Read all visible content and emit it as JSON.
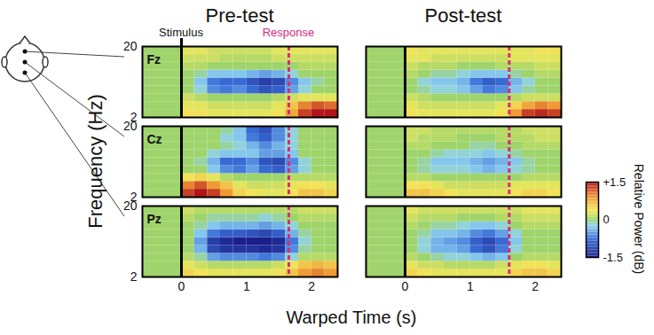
{
  "chart_data": {
    "type": "heatmap",
    "xlabel": "Warped Time (s)",
    "ylabel": "Frequency (Hz)",
    "columns": [
      "Pre-test",
      "Post-test"
    ],
    "rows": [
      "Fz",
      "Cz",
      "Pz"
    ],
    "xlim": [
      -0.6,
      2.4
    ],
    "xticks": [
      0,
      1,
      2
    ],
    "ylim": [
      2,
      20
    ],
    "yticks": [
      2,
      20
    ],
    "time_bins": [
      -0.6,
      0,
      0.2,
      0.4,
      0.6,
      0.8,
      1.0,
      1.2,
      1.4,
      1.6,
      1.8,
      2.0,
      2.2,
      2.4
    ],
    "frequency_bins": [
      2,
      4,
      6,
      8,
      10,
      12,
      14,
      16,
      18,
      20
    ],
    "stimulus": {
      "label": "Stimulus",
      "x": 0
    },
    "response_label": "Response",
    "colorbar": {
      "label": "Relative Power (dB)",
      "range": [
        -1.5,
        1.5
      ],
      "ticks": [
        {
          "value": 1.5,
          "label": "+1.5"
        },
        0,
        -1.5
      ]
    },
    "panels": [
      {
        "column": "Pre-test",
        "row": "Fz",
        "response": 1.65,
        "power": [
          [
            0,
            0.4,
            0.4,
            0.3,
            0.3,
            0.3,
            0.3,
            0.3,
            0.4,
            0.8,
            1.3,
            1.5,
            1.5
          ],
          [
            0,
            0.3,
            0.3,
            0.2,
            0.2,
            0.2,
            0.2,
            0.2,
            0.3,
            0.6,
            1.0,
            1.2,
            1.1
          ],
          [
            0,
            0.2,
            0.1,
            0,
            0,
            0,
            0,
            0,
            0.1,
            0.2,
            0.3,
            0.3,
            0.3
          ],
          [
            0,
            0,
            -0.2,
            -0.6,
            -0.7,
            -0.6,
            -0.8,
            -1.0,
            -0.9,
            -0.5,
            -0.2,
            0,
            0
          ],
          [
            0,
            0,
            -0.3,
            -0.7,
            -0.8,
            -0.8,
            -1.0,
            -1.2,
            -1.1,
            -0.6,
            -0.3,
            -0.1,
            0
          ],
          [
            0,
            0,
            -0.1,
            -0.3,
            -0.3,
            -0.3,
            -0.4,
            -0.5,
            -0.4,
            -0.2,
            0,
            0,
            0
          ],
          [
            0,
            0.1,
            0.1,
            0,
            0,
            0,
            0,
            0,
            0,
            0,
            0.1,
            0.1,
            0.1
          ],
          [
            0,
            0.2,
            0.2,
            0.2,
            0.1,
            0.1,
            0.1,
            0.1,
            0.2,
            0.2,
            0.2,
            0.2,
            0.2
          ],
          [
            0,
            0.3,
            0.3,
            0.2,
            0.2,
            0.2,
            0.2,
            0.2,
            0.3,
            0.3,
            0.3,
            0.3,
            0.3
          ]
        ]
      },
      {
        "column": "Post-test",
        "row": "Fz",
        "response": 1.6,
        "power": [
          [
            0,
            0.4,
            0.3,
            0.3,
            0.3,
            0.3,
            0.3,
            0.3,
            0.4,
            0.9,
            1.3,
            1.4,
            1.3
          ],
          [
            0,
            0.3,
            0.2,
            0.2,
            0.2,
            0.2,
            0.2,
            0.2,
            0.3,
            0.5,
            0.8,
            1.0,
            0.9
          ],
          [
            0,
            0.2,
            0.1,
            0,
            0,
            0,
            0,
            0,
            0,
            0.1,
            0.2,
            0.2,
            0.2
          ],
          [
            0,
            0,
            -0.1,
            -0.2,
            -0.2,
            -0.3,
            -0.5,
            -0.7,
            -0.6,
            -0.3,
            -0.1,
            0,
            0
          ],
          [
            0,
            0,
            -0.2,
            -0.3,
            -0.3,
            -0.4,
            -0.7,
            -0.9,
            -0.8,
            -0.4,
            -0.2,
            0,
            0
          ],
          [
            0,
            0.1,
            0,
            -0.1,
            -0.1,
            -0.2,
            -0.3,
            -0.3,
            -0.3,
            -0.1,
            0,
            0.1,
            0.1
          ],
          [
            0,
            0.2,
            0.1,
            0.1,
            0.1,
            0,
            0,
            0,
            0.1,
            0.1,
            0.1,
            0.2,
            0.2
          ],
          [
            0,
            0.3,
            0.3,
            0.2,
            0.2,
            0.2,
            0.2,
            0.2,
            0.2,
            0.3,
            0.3,
            0.3,
            0.3
          ],
          [
            0,
            0.4,
            0.3,
            0.3,
            0.3,
            0.3,
            0.3,
            0.3,
            0.3,
            0.3,
            0.3,
            0.4,
            0.4
          ]
        ]
      },
      {
        "column": "Pre-test",
        "row": "Cz",
        "response": 1.65,
        "power": [
          [
            0,
            1.3,
            1.5,
            1.3,
            0.9,
            0.5,
            0.4,
            0.3,
            0.3,
            0.4,
            0.6,
            0.6,
            0.5
          ],
          [
            0,
            1.0,
            1.2,
            0.9,
            0.6,
            0.3,
            0.2,
            0.2,
            0.2,
            0.3,
            0.4,
            0.4,
            0.3
          ],
          [
            0,
            0.4,
            0.5,
            0.3,
            0.1,
            0,
            0,
            0,
            0,
            0.1,
            0.1,
            0.1,
            0.1
          ],
          [
            0,
            0,
            0,
            -0.3,
            -0.6,
            -0.7,
            -0.5,
            -0.8,
            -0.9,
            -0.5,
            -0.2,
            0,
            0
          ],
          [
            0,
            0,
            -0.1,
            -0.4,
            -0.8,
            -0.8,
            -0.6,
            -1.0,
            -1.1,
            -0.6,
            -0.2,
            0,
            0
          ],
          [
            0,
            0,
            0,
            -0.2,
            -0.3,
            -0.3,
            -0.3,
            -0.5,
            -0.5,
            -0.3,
            0,
            0,
            0
          ],
          [
            0,
            0,
            0,
            0,
            -0.1,
            -0.2,
            -0.4,
            -0.6,
            -0.4,
            -0.2,
            0,
            0,
            0
          ],
          [
            0,
            0,
            0,
            0,
            -0.2,
            -0.3,
            -0.7,
            -0.9,
            -0.6,
            -0.2,
            0,
            0,
            0
          ],
          [
            0,
            0,
            0,
            0,
            -0.1,
            -0.3,
            -0.8,
            -1.0,
            -0.6,
            -0.2,
            0,
            0,
            0
          ]
        ]
      },
      {
        "column": "Post-test",
        "row": "Cz",
        "response": 1.6,
        "power": [
          [
            0,
            0.6,
            0.6,
            0.5,
            0.4,
            0.3,
            0.3,
            0.3,
            0.3,
            0.4,
            0.5,
            0.5,
            0.4
          ],
          [
            0,
            0.4,
            0.4,
            0.3,
            0.2,
            0.2,
            0.2,
            0.2,
            0.2,
            0.3,
            0.3,
            0.3,
            0.3
          ],
          [
            0,
            0.1,
            0.1,
            0,
            0,
            0,
            0,
            0,
            0,
            0,
            0.1,
            0.1,
            0.1
          ],
          [
            0,
            0,
            -0.1,
            -0.2,
            -0.2,
            -0.2,
            -0.3,
            -0.4,
            -0.3,
            -0.2,
            -0.1,
            0,
            0
          ],
          [
            0,
            0,
            -0.1,
            -0.3,
            -0.3,
            -0.3,
            -0.4,
            -0.5,
            -0.4,
            -0.3,
            -0.1,
            0,
            0
          ],
          [
            0,
            0,
            0,
            -0.1,
            -0.2,
            -0.2,
            -0.2,
            -0.3,
            -0.2,
            -0.1,
            0,
            0,
            0
          ],
          [
            0,
            0.1,
            0.1,
            0,
            0,
            0,
            -0.1,
            -0.1,
            0,
            0,
            0.1,
            0.1,
            0.1
          ],
          [
            0,
            0.2,
            0.1,
            0.1,
            0.1,
            0,
            0,
            0,
            0.1,
            0.1,
            0.1,
            0.2,
            0.2
          ],
          [
            0,
            0.2,
            0.2,
            0.1,
            0.1,
            0.1,
            0.1,
            0.1,
            0.1,
            0.1,
            0.2,
            0.2,
            0.2
          ]
        ]
      },
      {
        "column": "Pre-test",
        "row": "Pz",
        "response": 1.65,
        "power": [
          [
            0,
            0.5,
            0.4,
            0.3,
            0.3,
            0.3,
            0.3,
            0.3,
            0.4,
            0.6,
            0.9,
            1.0,
            0.9
          ],
          [
            0,
            0.3,
            0.2,
            0.1,
            0.1,
            0.1,
            0.1,
            0.1,
            0.2,
            0.4,
            0.6,
            0.7,
            0.6
          ],
          [
            0,
            0.1,
            -0.1,
            -0.5,
            -0.6,
            -0.6,
            -0.6,
            -0.7,
            -0.6,
            -0.2,
            0.1,
            0.1,
            0.1
          ],
          [
            0,
            0,
            -0.4,
            -1.1,
            -1.3,
            -1.3,
            -1.3,
            -1.4,
            -1.3,
            -0.6,
            -0.1,
            0,
            0
          ],
          [
            0,
            0,
            -0.5,
            -1.2,
            -1.4,
            -1.5,
            -1.5,
            -1.5,
            -1.4,
            -0.7,
            -0.2,
            0,
            0
          ],
          [
            0,
            0,
            -0.3,
            -0.7,
            -0.9,
            -0.9,
            -1.0,
            -1.1,
            -0.9,
            -0.4,
            -0.1,
            0,
            0
          ],
          [
            0,
            0,
            -0.1,
            -0.3,
            -0.4,
            -0.4,
            -0.4,
            -0.5,
            -0.4,
            -0.2,
            0,
            0,
            0
          ],
          [
            0,
            0.1,
            0,
            -0.1,
            -0.1,
            -0.1,
            -0.1,
            -0.2,
            -0.1,
            0,
            0.1,
            0.1,
            0.1
          ],
          [
            0,
            0.2,
            0.1,
            0.1,
            0.1,
            0.1,
            0.1,
            0.1,
            0.1,
            0.1,
            0.2,
            0.2,
            0.2
          ]
        ]
      },
      {
        "column": "Post-test",
        "row": "Pz",
        "response": 1.6,
        "power": [
          [
            0,
            0.5,
            0.4,
            0.3,
            0.3,
            0.3,
            0.3,
            0.3,
            0.3,
            0.5,
            0.6,
            0.6,
            0.5
          ],
          [
            0,
            0.3,
            0.2,
            0.2,
            0.1,
            0.1,
            0.1,
            0.1,
            0.2,
            0.3,
            0.4,
            0.4,
            0.3
          ],
          [
            0,
            0.1,
            0,
            -0.1,
            -0.2,
            -0.2,
            -0.3,
            -0.4,
            -0.3,
            0,
            0.1,
            0.1,
            0.1
          ],
          [
            0,
            0,
            -0.2,
            -0.4,
            -0.4,
            -0.5,
            -0.8,
            -1.0,
            -0.7,
            -0.2,
            0,
            0,
            0
          ],
          [
            0,
            0,
            -0.2,
            -0.4,
            -0.5,
            -0.6,
            -0.9,
            -1.1,
            -0.8,
            -0.3,
            0,
            0,
            0
          ],
          [
            0,
            0,
            -0.1,
            -0.3,
            -0.3,
            -0.4,
            -0.6,
            -0.7,
            -0.5,
            -0.2,
            0,
            0,
            0
          ],
          [
            0,
            0.1,
            0,
            -0.1,
            -0.1,
            -0.2,
            -0.3,
            -0.3,
            -0.2,
            0,
            0.1,
            0.1,
            0.1
          ],
          [
            0,
            0.2,
            0.1,
            0.1,
            0.1,
            0,
            0,
            0,
            0.1,
            0.1,
            0.2,
            0.2,
            0.2
          ],
          [
            0,
            0.3,
            0.2,
            0.2,
            0.2,
            0.2,
            0.2,
            0.2,
            0.2,
            0.2,
            0.3,
            0.3,
            0.3
          ]
        ]
      }
    ]
  }
}
